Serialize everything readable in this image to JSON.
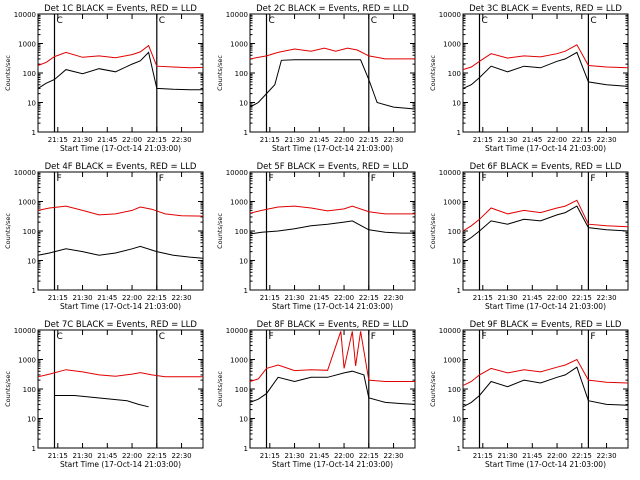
{
  "figure": {
    "ylabel": "Counts/sec",
    "xlabel": "Start Time (17-Oct-14 21:03:00)"
  },
  "colors": {
    "events": "#000000",
    "lld": "#e00000",
    "axis": "#000000"
  },
  "chart_data": [
    {
      "type": "line",
      "title": "Det 1C BLACK = Events, RED = LLD",
      "xlabel": "Start Time (17-Oct-14 21:03:00)",
      "ylabel": "Counts/sec",
      "yscale": "log",
      "ylim": [
        1,
        10000
      ],
      "xlim": [
        "21:03",
        "22:43"
      ],
      "xticks": [
        "21:15",
        "21:30",
        "21:45",
        "22:00",
        "22:15",
        "22:30"
      ],
      "yticks": [
        "1",
        "10",
        "100",
        "1000",
        "10000"
      ],
      "markers": [
        "21:13",
        "22:15"
      ],
      "marker_labels": [
        "C",
        "C"
      ],
      "series": [
        {
          "name": "Events",
          "color": "#000000",
          "x": [
            "21:03",
            "21:08",
            "21:13",
            "21:20",
            "21:30",
            "21:40",
            "21:50",
            "22:00",
            "22:05",
            "22:10",
            "22:15",
            "22:25",
            "22:35",
            "22:43"
          ],
          "y": [
            30,
            45,
            60,
            130,
            95,
            140,
            110,
            200,
            260,
            500,
            30,
            28,
            27,
            27
          ]
        },
        {
          "name": "LLD",
          "color": "#e00000",
          "x": [
            "21:03",
            "21:08",
            "21:13",
            "21:20",
            "21:30",
            "21:40",
            "21:50",
            "22:00",
            "22:05",
            "22:10",
            "22:15",
            "22:25",
            "22:35",
            "22:43"
          ],
          "y": [
            180,
            230,
            360,
            500,
            340,
            380,
            330,
            420,
            520,
            850,
            170,
            160,
            150,
            155
          ]
        }
      ]
    },
    {
      "type": "line",
      "title": "Det 2C BLACK = Events, RED = LLD",
      "xlabel": "Start Time (17-Oct-14 21:03:00)",
      "ylabel": "Counts/sec",
      "yscale": "log",
      "ylim": [
        1,
        10000
      ],
      "xlim": [
        "21:03",
        "22:43"
      ],
      "xticks": [
        "21:15",
        "21:30",
        "21:45",
        "22:00",
        "22:15",
        "22:30"
      ],
      "yticks": [
        "1",
        "10",
        "100",
        "1000",
        "10000"
      ],
      "markers": [
        "21:13",
        "22:15"
      ],
      "marker_labels": [
        "C",
        "C"
      ],
      "series": [
        {
          "name": "Events",
          "color": "#000000",
          "x": [
            "21:03",
            "21:08",
            "21:13",
            "21:18",
            "21:22",
            "21:30",
            "21:45",
            "22:00",
            "22:10",
            "22:15",
            "22:20",
            "22:30",
            "22:43"
          ],
          "y": [
            7,
            10,
            20,
            40,
            270,
            280,
            280,
            280,
            280,
            60,
            10,
            7,
            6
          ]
        },
        {
          "name": "LLD",
          "color": "#e00000",
          "x": [
            "21:03",
            "21:13",
            "21:20",
            "21:30",
            "21:40",
            "21:48",
            "21:55",
            "22:02",
            "22:08",
            "22:15",
            "22:25",
            "22:43"
          ],
          "y": [
            300,
            380,
            500,
            650,
            550,
            700,
            550,
            700,
            600,
            380,
            300,
            300
          ]
        }
      ]
    },
    {
      "type": "line",
      "title": "Det 3C BLACK = Events, RED = LLD",
      "xlabel": "Start Time (17-Oct-14 21:03:00)",
      "ylabel": "Counts/sec",
      "yscale": "log",
      "ylim": [
        1,
        10000
      ],
      "xlim": [
        "21:03",
        "22:43"
      ],
      "xticks": [
        "21:15",
        "21:30",
        "21:45",
        "22:00",
        "22:15",
        "22:30"
      ],
      "yticks": [
        "1",
        "10",
        "100",
        "1000",
        "10000"
      ],
      "markers": [
        "21:13",
        "22:19"
      ],
      "marker_labels": [
        "C",
        "C"
      ],
      "series": [
        {
          "name": "Events",
          "color": "#000000",
          "x": [
            "21:03",
            "21:08",
            "21:13",
            "21:20",
            "21:30",
            "21:40",
            "21:50",
            "22:00",
            "22:05",
            "22:12",
            "22:19",
            "22:30",
            "22:43"
          ],
          "y": [
            30,
            40,
            70,
            170,
            110,
            170,
            150,
            250,
            300,
            500,
            50,
            40,
            35
          ]
        },
        {
          "name": "LLD",
          "color": "#e00000",
          "x": [
            "21:03",
            "21:08",
            "21:13",
            "21:20",
            "21:30",
            "21:40",
            "21:50",
            "22:00",
            "22:05",
            "22:12",
            "22:19",
            "22:30",
            "22:43"
          ],
          "y": [
            130,
            160,
            250,
            450,
            320,
            380,
            350,
            450,
            550,
            900,
            180,
            160,
            150
          ]
        }
      ]
    },
    {
      "type": "line",
      "title": "Det 4F BLACK = Events, RED = LLD",
      "xlabel": "Start Time (17-Oct-14 21:03:00)",
      "ylabel": "Counts/sec",
      "yscale": "log",
      "ylim": [
        1,
        10000
      ],
      "xlim": [
        "21:03",
        "22:43"
      ],
      "xticks": [
        "21:15",
        "21:30",
        "21:45",
        "22:00",
        "22:15",
        "22:30"
      ],
      "yticks": [
        "1",
        "10",
        "100",
        "1000",
        "10000"
      ],
      "markers": [
        "21:13",
        "22:15"
      ],
      "marker_labels": [
        "F",
        "F"
      ],
      "series": [
        {
          "name": "Events",
          "color": "#000000",
          "x": [
            "21:03",
            "21:10",
            "21:20",
            "21:30",
            "21:40",
            "21:50",
            "22:00",
            "22:05",
            "22:15",
            "22:25",
            "22:35",
            "22:43"
          ],
          "y": [
            15,
            18,
            25,
            20,
            15,
            18,
            25,
            30,
            20,
            15,
            13,
            12
          ]
        },
        {
          "name": "LLD",
          "color": "#e00000",
          "x": [
            "21:03",
            "21:10",
            "21:20",
            "21:30",
            "21:40",
            "21:50",
            "22:00",
            "22:05",
            "22:12",
            "22:20",
            "22:30",
            "22:43"
          ],
          "y": [
            500,
            600,
            700,
            500,
            350,
            380,
            500,
            650,
            550,
            380,
            330,
            320
          ]
        }
      ]
    },
    {
      "type": "line",
      "title": "Det 5F BLACK = Events, RED = LLD",
      "xlabel": "Start Time (17-Oct-14 21:03:00)",
      "ylabel": "Counts/sec",
      "yscale": "log",
      "ylim": [
        1,
        10000
      ],
      "xlim": [
        "21:03",
        "22:43"
      ],
      "xticks": [
        "21:15",
        "21:30",
        "21:45",
        "22:00",
        "22:15",
        "22:30"
      ],
      "yticks": [
        "1",
        "10",
        "100",
        "1000",
        "10000"
      ],
      "markers": [
        "21:13",
        "22:15"
      ],
      "marker_labels": [
        "F",
        "F"
      ],
      "series": [
        {
          "name": "Events",
          "color": "#000000",
          "x": [
            "21:03",
            "21:10",
            "21:20",
            "21:30",
            "21:40",
            "21:50",
            "22:00",
            "22:05",
            "22:15",
            "22:25",
            "22:35",
            "22:43"
          ],
          "y": [
            80,
            90,
            100,
            120,
            150,
            170,
            200,
            220,
            110,
            90,
            85,
            85
          ]
        },
        {
          "name": "LLD",
          "color": "#e00000",
          "x": [
            "21:03",
            "21:10",
            "21:20",
            "21:30",
            "21:40",
            "21:50",
            "22:00",
            "22:05",
            "22:15",
            "22:25",
            "22:35",
            "22:43"
          ],
          "y": [
            400,
            500,
            650,
            700,
            600,
            480,
            560,
            700,
            450,
            380,
            380,
            380
          ]
        }
      ]
    },
    {
      "type": "line",
      "title": "Det 6F BLACK = Events, RED = LLD",
      "xlabel": "Start Time (17-Oct-14 21:03:00)",
      "ylabel": "Counts/sec",
      "yscale": "log",
      "ylim": [
        1,
        10000
      ],
      "xlim": [
        "21:03",
        "22:43"
      ],
      "xticks": [
        "21:15",
        "21:30",
        "21:45",
        "22:00",
        "22:15",
        "22:30"
      ],
      "yticks": [
        "1",
        "10",
        "100",
        "1000",
        "10000"
      ],
      "markers": [
        "21:13",
        "22:19"
      ],
      "marker_labels": [
        "F",
        "F"
      ],
      "series": [
        {
          "name": "Events",
          "color": "#000000",
          "x": [
            "21:03",
            "21:08",
            "21:13",
            "21:20",
            "21:30",
            "21:40",
            "21:50",
            "22:00",
            "22:05",
            "22:12",
            "22:19",
            "22:30",
            "22:43"
          ],
          "y": [
            40,
            60,
            100,
            220,
            170,
            250,
            220,
            350,
            420,
            700,
            130,
            110,
            100
          ]
        },
        {
          "name": "LLD",
          "color": "#e00000",
          "x": [
            "21:03",
            "21:08",
            "21:13",
            "21:20",
            "21:30",
            "21:40",
            "21:50",
            "22:00",
            "22:05",
            "22:12",
            "22:19",
            "22:30",
            "22:43"
          ],
          "y": [
            100,
            150,
            250,
            600,
            380,
            500,
            420,
            600,
            700,
            1100,
            170,
            150,
            140
          ]
        }
      ]
    },
    {
      "type": "line",
      "title": "Det 7C BLACK = Events, RED = LLD",
      "xlabel": "Start Time (17-Oct-14 21:03:00)",
      "ylabel": "Counts/sec",
      "yscale": "log",
      "ylim": [
        1,
        10000
      ],
      "xlim": [
        "21:03",
        "22:43"
      ],
      "xticks": [
        "21:15",
        "21:30",
        "21:45",
        "22:00",
        "22:15",
        "22:30"
      ],
      "yticks": [
        "1",
        "10",
        "100",
        "1000",
        "10000"
      ],
      "markers": [
        "21:13",
        "22:15"
      ],
      "marker_labels": [
        "C",
        "C"
      ],
      "series": [
        {
          "name": "Events",
          "color": "#000000",
          "x": [
            "21:13",
            "21:25",
            "21:57",
            "22:04",
            "22:10"
          ],
          "y": [
            60,
            60,
            40,
            30,
            25
          ]
        },
        {
          "name": "LLD",
          "color": "#e00000",
          "x": [
            "21:03",
            "21:10",
            "21:20",
            "21:30",
            "21:40",
            "21:50",
            "22:00",
            "22:05",
            "22:12",
            "22:20",
            "22:30",
            "22:43"
          ],
          "y": [
            260,
            320,
            450,
            380,
            300,
            270,
            320,
            360,
            300,
            260,
            260,
            260
          ]
        }
      ]
    },
    {
      "type": "line",
      "title": "Det 8F BLACK = Events, RED = LLD",
      "xlabel": "Start Time (17-Oct-14 21:03:00)",
      "ylabel": "Counts/sec",
      "yscale": "log",
      "ylim": [
        1,
        10000
      ],
      "xlim": [
        "21:03",
        "22:43"
      ],
      "xticks": [
        "21:15",
        "21:30",
        "21:45",
        "22:00",
        "22:15",
        "22:30"
      ],
      "yticks": [
        "1",
        "10",
        "100",
        "1000",
        "10000"
      ],
      "markers": [
        "21:13",
        "22:15"
      ],
      "marker_labels": [
        "F",
        "F"
      ],
      "series": [
        {
          "name": "Events",
          "color": "#000000",
          "x": [
            "21:03",
            "21:08",
            "21:13",
            "21:20",
            "21:30",
            "21:40",
            "21:50",
            "22:00",
            "22:05",
            "22:12",
            "22:15",
            "22:25",
            "22:35",
            "22:43"
          ],
          "y": [
            35,
            45,
            70,
            250,
            180,
            250,
            250,
            350,
            400,
            300,
            50,
            35,
            32,
            30
          ]
        },
        {
          "name": "LLD",
          "color": "#e00000",
          "x": [
            "21:03",
            "21:08",
            "21:13",
            "21:20",
            "21:30",
            "21:40",
            "21:50",
            "21:58",
            "22:00",
            "22:05",
            "22:07",
            "22:10",
            "22:15",
            "22:25",
            "22:43"
          ],
          "y": [
            180,
            220,
            500,
            650,
            420,
            450,
            430,
            9000,
            500,
            9000,
            600,
            9000,
            200,
            180,
            180
          ]
        }
      ]
    },
    {
      "type": "line",
      "title": "Det 9F BLACK = Events, RED = LLD",
      "xlabel": "Start Time (17-Oct-14 21:03:00)",
      "ylabel": "Counts/sec",
      "yscale": "log",
      "ylim": [
        1,
        10000
      ],
      "xlim": [
        "21:03",
        "22:43"
      ],
      "xticks": [
        "21:15",
        "21:30",
        "21:45",
        "22:00",
        "22:15",
        "22:30"
      ],
      "yticks": [
        "1",
        "10",
        "100",
        "1000",
        "10000"
      ],
      "markers": [
        "21:13",
        "22:19"
      ],
      "marker_labels": [
        "F",
        "F"
      ],
      "series": [
        {
          "name": "Events",
          "color": "#000000",
          "x": [
            "21:03",
            "21:08",
            "21:13",
            "21:20",
            "21:30",
            "21:40",
            "21:50",
            "22:00",
            "22:05",
            "22:12",
            "22:19",
            "22:30",
            "22:43"
          ],
          "y": [
            25,
            35,
            60,
            180,
            120,
            200,
            160,
            250,
            300,
            550,
            40,
            30,
            28
          ]
        },
        {
          "name": "LLD",
          "color": "#e00000",
          "x": [
            "21:03",
            "21:08",
            "21:13",
            "21:20",
            "21:30",
            "21:40",
            "21:50",
            "22:00",
            "22:05",
            "22:12",
            "22:19",
            "22:30",
            "22:43"
          ],
          "y": [
            130,
            180,
            300,
            500,
            350,
            450,
            380,
            550,
            650,
            1000,
            200,
            170,
            160
          ]
        }
      ]
    }
  ]
}
